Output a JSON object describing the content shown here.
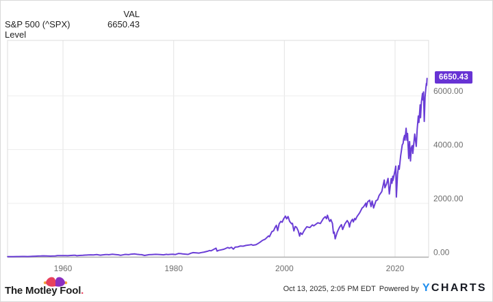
{
  "header": {
    "series_label": "S&P 500 (^SPX) Level",
    "col_val": "VAL",
    "value": "6650.43"
  },
  "badge": {
    "value": "6650.43"
  },
  "footer": {
    "brand": "The Motley Fool",
    "brand_period": ".",
    "timestamp": "Oct 13, 2025, 2:05 PM EDT",
    "powered_by": "Powered by",
    "ycharts_y": "Y",
    "ycharts_rest": "CHARTS"
  },
  "colors": {
    "line": "#6a3dd6",
    "badge_bg": "#6733d4",
    "ycharts_blue": "#1e8dee",
    "hat_pink": "#e8415d",
    "hat_purple": "#8b2fc0",
    "hat_gold": "#f2a33c",
    "tick_text": "#6e6e6e",
    "grid_h": "#ededed",
    "grid_v": "#e3e3e3",
    "plot_frame": "#dcdcdc",
    "axis_bottom": "#aeaeae"
  },
  "chart_data": {
    "type": "line",
    "title": "S&P 500 (^SPX) Level",
    "xlabel": "",
    "ylabel": "",
    "x_range": [
      1950,
      2026
    ],
    "y_range": [
      0,
      8060
    ],
    "grid": true,
    "legend_position": "none",
    "x_ticks": [
      {
        "year": 1960,
        "label": "1960"
      },
      {
        "year": 1980,
        "label": "1980"
      },
      {
        "year": 2000,
        "label": "2000"
      },
      {
        "year": 2020,
        "label": "2020"
      }
    ],
    "y_ticks": [
      {
        "value": 0,
        "label": "0.00"
      },
      {
        "value": 2000,
        "label": "2000.00"
      },
      {
        "value": 4000,
        "label": "4000.00"
      },
      {
        "value": 6000,
        "label": "6000.00"
      }
    ],
    "series": [
      {
        "name": "S&P 500 (^SPX) Level",
        "final_value": 6650.43,
        "final_date": "Oct 13, 2025",
        "points": [
          [
            1950,
            17
          ],
          [
            1950.5,
            19
          ],
          [
            1951,
            21.5
          ],
          [
            1951.6,
            23
          ],
          [
            1952,
            24
          ],
          [
            1952.6,
            25
          ],
          [
            1953,
            25
          ],
          [
            1953.6,
            23
          ],
          [
            1954,
            26.5
          ],
          [
            1954.5,
            30
          ],
          [
            1955,
            36
          ],
          [
            1955.5,
            41
          ],
          [
            1956,
            44
          ],
          [
            1956.4,
            48
          ],
          [
            1957,
            45
          ],
          [
            1957.78,
            39
          ],
          [
            1958,
            42
          ],
          [
            1958.6,
            47
          ],
          [
            1959,
            55
          ],
          [
            1959.6,
            58
          ],
          [
            1960,
            58
          ],
          [
            1960.5,
            56
          ],
          [
            1960.85,
            53
          ],
          [
            1961.2,
            61
          ],
          [
            1961.95,
            72
          ],
          [
            1962.25,
            68
          ],
          [
            1962.5,
            53
          ],
          [
            1963,
            63
          ],
          [
            1963.6,
            70
          ],
          [
            1964,
            77
          ],
          [
            1964.6,
            82
          ],
          [
            1965,
            87
          ],
          [
            1965.5,
            84
          ],
          [
            1966.1,
            93
          ],
          [
            1966.75,
            74
          ],
          [
            1967.1,
            83
          ],
          [
            1967.7,
            94
          ],
          [
            1968.05,
            96
          ],
          [
            1968.25,
            88
          ],
          [
            1968.92,
            107
          ],
          [
            1969.5,
            97
          ],
          [
            1970.05,
            86
          ],
          [
            1970.4,
            70
          ],
          [
            1971.05,
            95
          ],
          [
            1971.35,
            101
          ],
          [
            1971.85,
            91
          ],
          [
            1972.2,
            106
          ],
          [
            1972.95,
            119
          ],
          [
            1973.4,
            104
          ],
          [
            1973.85,
            95
          ],
          [
            1974.2,
            92
          ],
          [
            1974.75,
            63
          ],
          [
            1975.1,
            76
          ],
          [
            1975.55,
            92
          ],
          [
            1976.05,
            98
          ],
          [
            1976.75,
            104
          ],
          [
            1977.05,
            101
          ],
          [
            1977.6,
            97
          ],
          [
            1978.15,
            87
          ],
          [
            1978.7,
            104
          ],
          [
            1978.95,
            94
          ],
          [
            1979.3,
            101
          ],
          [
            1979.8,
            109
          ],
          [
            1980.1,
            102
          ],
          [
            1980.3,
            98
          ],
          [
            1980.9,
            137
          ],
          [
            1981.3,
            130
          ],
          [
            1981.6,
            122
          ],
          [
            1982.1,
            113
          ],
          [
            1982.6,
            102
          ],
          [
            1983.1,
            145
          ],
          [
            1983.5,
            168
          ],
          [
            1984.1,
            157
          ],
          [
            1984.55,
            150
          ],
          [
            1985,
            170
          ],
          [
            1985.5,
            188
          ],
          [
            1986.1,
            220
          ],
          [
            1986.5,
            247
          ],
          [
            1986.75,
            235
          ],
          [
            1987.1,
            275
          ],
          [
            1987.65,
            335
          ],
          [
            1987.83,
            224
          ],
          [
            1988.1,
            250
          ],
          [
            1988.6,
            272
          ],
          [
            1989.1,
            295
          ],
          [
            1989.78,
            358
          ],
          [
            1990.05,
            330
          ],
          [
            1990.45,
            368
          ],
          [
            1990.78,
            298
          ],
          [
            1991.1,
            372
          ],
          [
            1991.6,
            382
          ],
          [
            1992.05,
            415
          ],
          [
            1992.55,
            408
          ],
          [
            1993.05,
            435
          ],
          [
            1993.6,
            452
          ],
          [
            1994.05,
            470
          ],
          [
            1994.3,
            444
          ],
          [
            1994.85,
            460
          ],
          [
            1995.1,
            490
          ],
          [
            1995.6,
            555
          ],
          [
            1996.05,
            625
          ],
          [
            1996.55,
            670
          ],
          [
            1996.9,
            745
          ],
          [
            1997.15,
            790
          ],
          [
            1997.3,
            760
          ],
          [
            1997.75,
            950
          ],
          [
            1998.05,
            980
          ],
          [
            1998.3,
            1100
          ],
          [
            1998.55,
            1185
          ],
          [
            1998.78,
            985
          ],
          [
            1999.05,
            1240
          ],
          [
            1999.35,
            1330
          ],
          [
            1999.6,
            1300
          ],
          [
            1999.85,
            1420
          ],
          [
            2000.2,
            1525
          ],
          [
            2000.4,
            1425
          ],
          [
            2000.67,
            1510
          ],
          [
            2000.95,
            1330
          ],
          [
            2001.3,
            1240
          ],
          [
            2001.45,
            1255
          ],
          [
            2001.72,
            975
          ],
          [
            2001.95,
            1140
          ],
          [
            2002.2,
            1110
          ],
          [
            2002.5,
            980
          ],
          [
            2002.75,
            785
          ],
          [
            2002.92,
            905
          ],
          [
            2003.2,
            845
          ],
          [
            2003.6,
            1000
          ],
          [
            2004.05,
            1130
          ],
          [
            2004.6,
            1100
          ],
          [
            2005.05,
            1200
          ],
          [
            2005.3,
            1165
          ],
          [
            2006.05,
            1280
          ],
          [
            2006.5,
            1250
          ],
          [
            2007.05,
            1440
          ],
          [
            2007.4,
            1505
          ],
          [
            2007.6,
            1430
          ],
          [
            2007.78,
            1560
          ],
          [
            2008.05,
            1390
          ],
          [
            2008.2,
            1330
          ],
          [
            2008.4,
            1400
          ],
          [
            2008.68,
            1255
          ],
          [
            2008.87,
            890
          ],
          [
            2009.02,
            930
          ],
          [
            2009.18,
            680
          ],
          [
            2009.55,
            930
          ],
          [
            2009.95,
            1110
          ],
          [
            2010.3,
            1210
          ],
          [
            2010.52,
            1030
          ],
          [
            2010.95,
            1240
          ],
          [
            2011.1,
            1290
          ],
          [
            2011.35,
            1360
          ],
          [
            2011.6,
            1280
          ],
          [
            2011.76,
            1120
          ],
          [
            2011.9,
            1250
          ],
          [
            2012.1,
            1350
          ],
          [
            2012.3,
            1410
          ],
          [
            2012.45,
            1310
          ],
          [
            2012.7,
            1440
          ],
          [
            2012.85,
            1390
          ],
          [
            2013.1,
            1500
          ],
          [
            2013.6,
            1650
          ],
          [
            2014.05,
            1830
          ],
          [
            2014.3,
            1870
          ],
          [
            2014.72,
            2010
          ],
          [
            2014.79,
            1865
          ],
          [
            2015.05,
            2060
          ],
          [
            2015.4,
            2120
          ],
          [
            2015.66,
            1880
          ],
          [
            2015.85,
            2090
          ],
          [
            2016.12,
            1830
          ],
          [
            2016.55,
            2100
          ],
          [
            2016.85,
            2135
          ],
          [
            2017.1,
            2290
          ],
          [
            2017.6,
            2440
          ],
          [
            2018.05,
            2870
          ],
          [
            2018.16,
            2580
          ],
          [
            2018.45,
            2720
          ],
          [
            2018.72,
            2930
          ],
          [
            2018.96,
            2350
          ],
          [
            2019.3,
            2920
          ],
          [
            2019.43,
            2750
          ],
          [
            2019.58,
            3010
          ],
          [
            2019.62,
            2850
          ],
          [
            2020.0,
            3240
          ],
          [
            2020.13,
            3386
          ],
          [
            2020.23,
            2237
          ],
          [
            2020.45,
            3080
          ],
          [
            2020.62,
            3400
          ],
          [
            2020.75,
            3270
          ],
          [
            2021.0,
            3760
          ],
          [
            2021.3,
            4180
          ],
          [
            2021.45,
            4230
          ],
          [
            2021.55,
            4400
          ],
          [
            2021.72,
            4530
          ],
          [
            2021.8,
            4350
          ],
          [
            2021.99,
            4797
          ],
          [
            2022.15,
            4350
          ],
          [
            2022.25,
            4600
          ],
          [
            2022.46,
            3670
          ],
          [
            2022.62,
            4300
          ],
          [
            2022.78,
            3580
          ],
          [
            2022.95,
            4080
          ],
          [
            2023.1,
            4150
          ],
          [
            2023.2,
            3860
          ],
          [
            2023.55,
            4580
          ],
          [
            2023.82,
            4120
          ],
          [
            2024.0,
            4770
          ],
          [
            2024.2,
            5250
          ],
          [
            2024.3,
            5010
          ],
          [
            2024.53,
            5667
          ],
          [
            2024.6,
            5190
          ],
          [
            2024.75,
            5760
          ],
          [
            2024.95,
            6090
          ],
          [
            2025.05,
            5850
          ],
          [
            2025.13,
            6144
          ],
          [
            2025.27,
            5050
          ],
          [
            2025.42,
            5960
          ],
          [
            2025.55,
            6280
          ],
          [
            2025.65,
            6460
          ],
          [
            2025.7,
            6390
          ],
          [
            2025.78,
            6650.43
          ]
        ]
      }
    ]
  }
}
